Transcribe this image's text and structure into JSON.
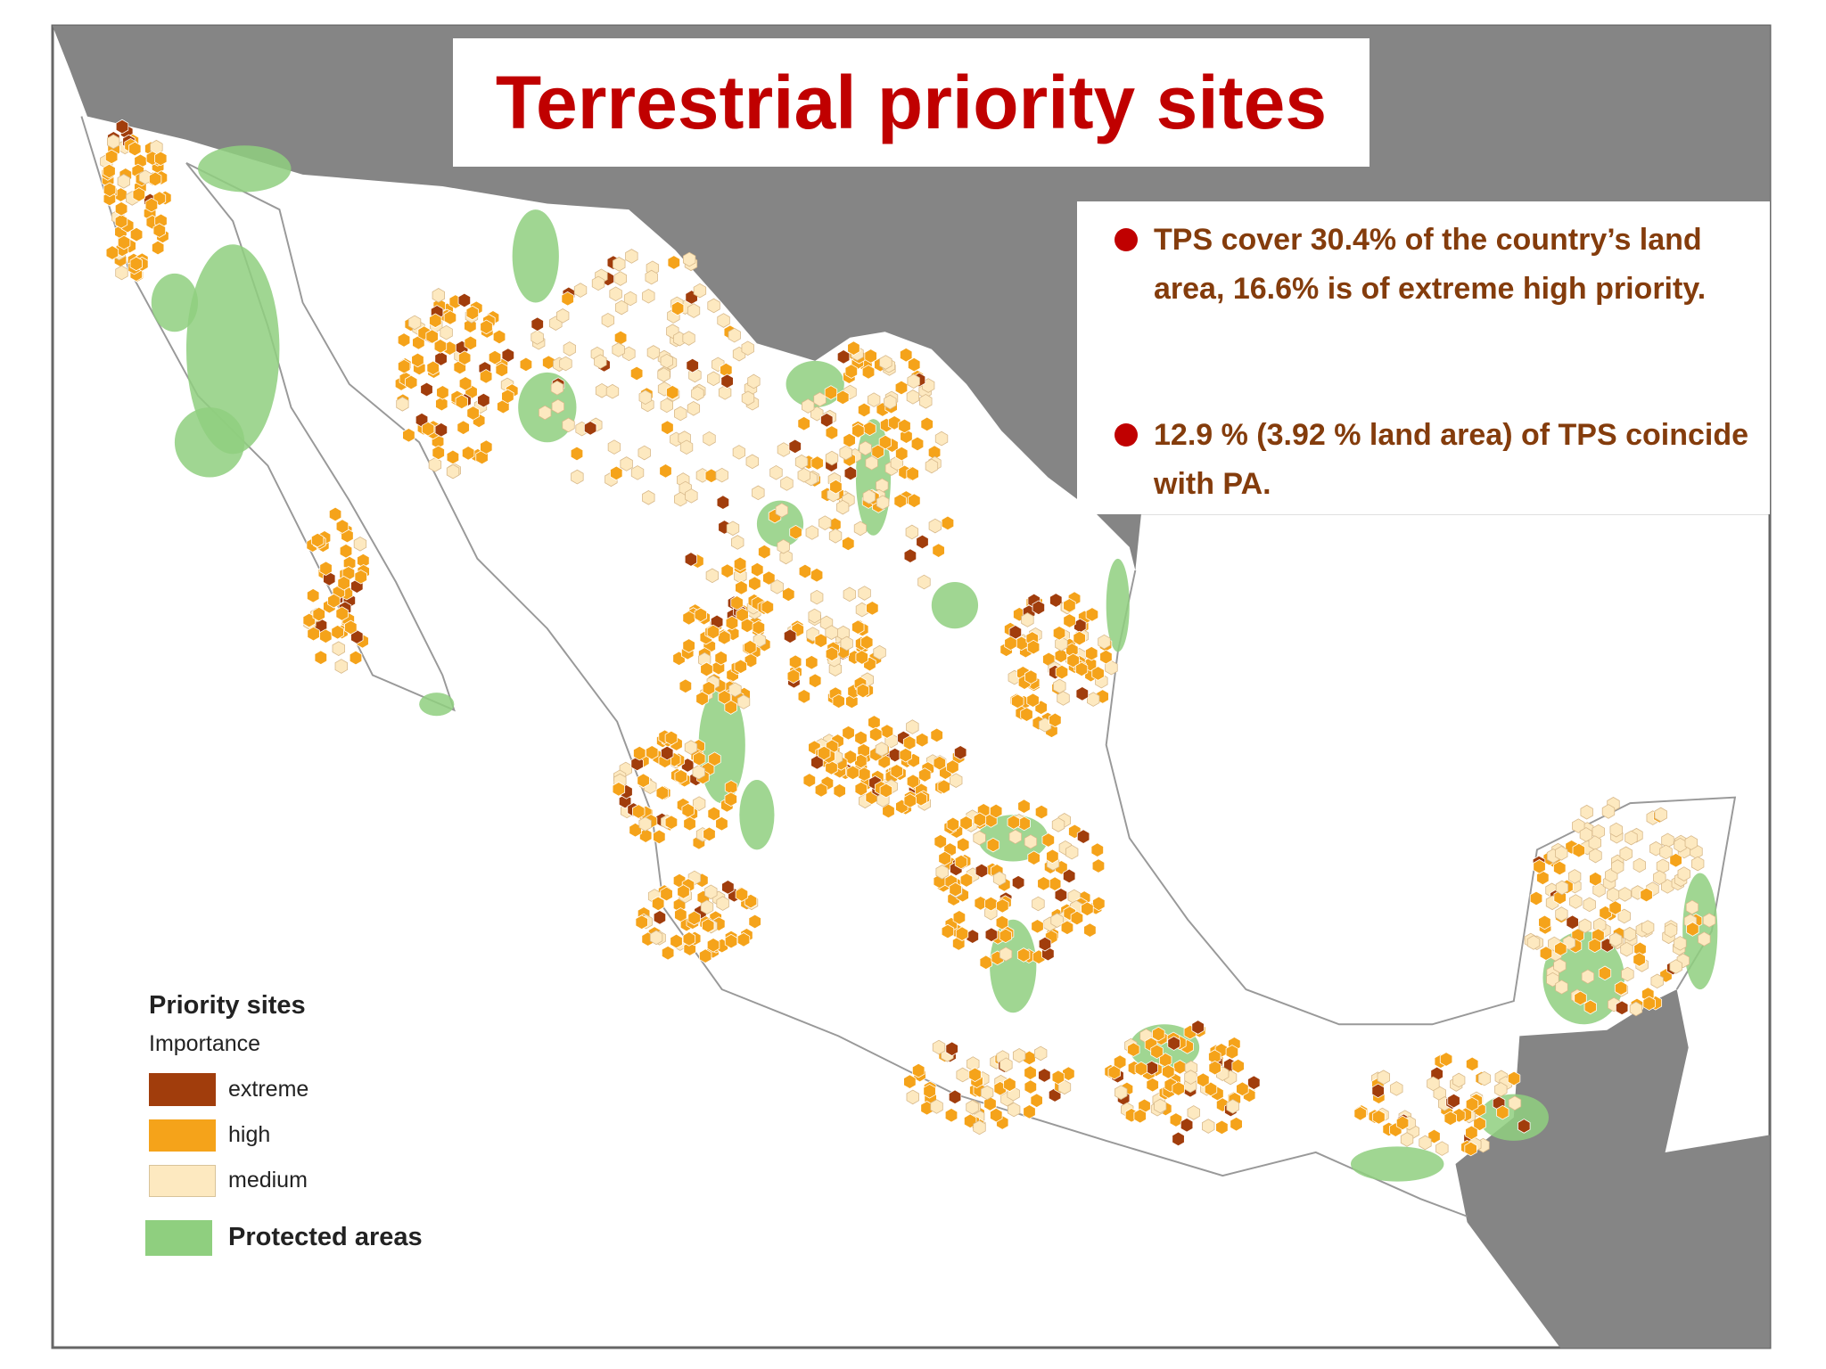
{
  "title": "Terrestrial priority sites",
  "bullets": [
    "TPS cover 30.4% of the country’s land area, 16.6% is of extreme high priority.",
    "12.9 % (3.92 % land area) of TPS coincide with PA."
  ],
  "legend": {
    "title": "Priority sites",
    "subtitle": "Importance",
    "items": [
      "extreme",
      "high",
      "medium"
    ],
    "protected": "Protected areas"
  }
}
